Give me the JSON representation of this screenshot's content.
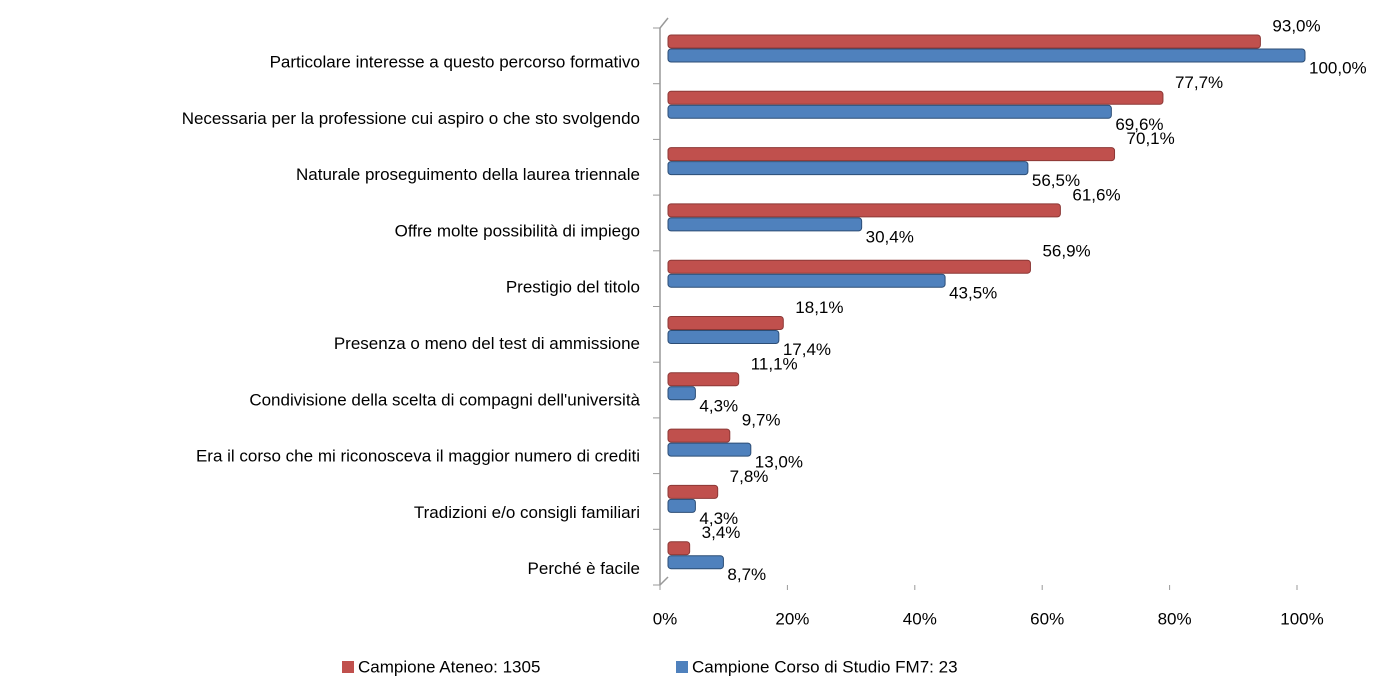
{
  "chart_data": {
    "type": "bar",
    "orientation": "horizontal",
    "categories": [
      "Particolare interesse a questo percorso formativo",
      "Necessaria per la professione cui aspiro o che sto svolgendo",
      "Naturale proseguimento della laurea triennale",
      "Offre molte possibilità di impiego",
      "Prestigio del titolo",
      "Presenza o meno del test di ammissione",
      "Condivisione della scelta di compagni dell'università",
      "Era il corso che mi riconosceva il maggior numero di crediti",
      "Tradizioni e/o consigli familiari",
      "Perché è facile"
    ],
    "series": [
      {
        "name": "Campione Ateneo: 1305",
        "color": "#c0504d",
        "values": [
          93.0,
          77.7,
          70.1,
          61.6,
          56.9,
          18.1,
          11.1,
          9.7,
          7.8,
          3.4
        ],
        "value_labels": [
          "93,0%",
          "77,7%",
          "70,1%",
          "61,6%",
          "56,9%",
          "18,1%",
          "11,1%",
          "9,7%",
          "7,8%",
          "3,4%"
        ]
      },
      {
        "name": "Campione Corso di Studio FM7: 23",
        "color": "#4f81bd",
        "values": [
          100.0,
          69.6,
          56.5,
          30.4,
          43.5,
          17.4,
          4.3,
          13.0,
          4.3,
          8.7
        ],
        "value_labels": [
          "100,0%",
          "69,6%",
          "56,5%",
          "30,4%",
          "43,5%",
          "17,4%",
          "4,3%",
          "13,0%",
          "4,3%",
          "8,7%"
        ]
      }
    ],
    "xlim": [
      0,
      100
    ],
    "xticks": [
      {
        "value": 0,
        "label": "0%"
      },
      {
        "value": 20,
        "label": "20%"
      },
      {
        "value": 40,
        "label": "40%"
      },
      {
        "value": 60,
        "label": "60%"
      },
      {
        "value": 80,
        "label": "80%"
      },
      {
        "value": 100,
        "label": "100%"
      }
    ],
    "legend": "bottom"
  }
}
